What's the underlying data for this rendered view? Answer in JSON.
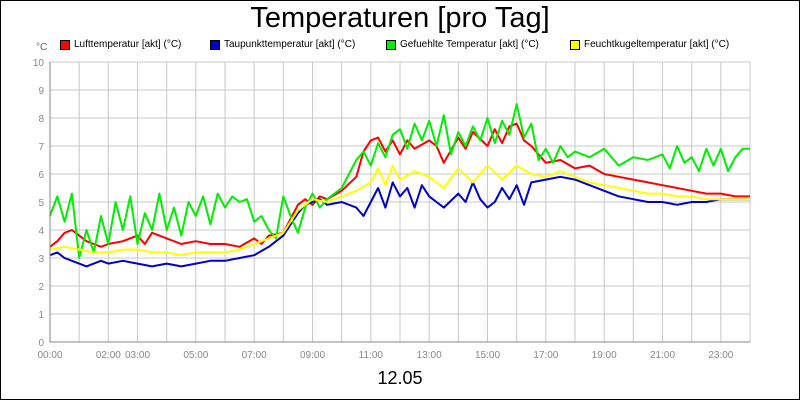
{
  "chart_data": {
    "type": "line",
    "title": "Temperaturen [pro Tag]",
    "ylabel": "°C",
    "xlabel": "12.05",
    "ylim": [
      0,
      10
    ],
    "xlim": [
      0,
      24
    ],
    "grid": true,
    "legend_position": "top",
    "y_ticks": [
      "0",
      "1",
      "2",
      "3",
      "4",
      "5",
      "6",
      "7",
      "8",
      "9",
      "10"
    ],
    "x_ticks": [
      {
        "x": 0,
        "label": "00:00"
      },
      {
        "x": 2,
        "label": "02:00"
      },
      {
        "x": 3,
        "label": "03:00"
      },
      {
        "x": 5,
        "label": "05:00"
      },
      {
        "x": 7,
        "label": "07:00"
      },
      {
        "x": 9,
        "label": "09:00"
      },
      {
        "x": 11,
        "label": "11:00"
      },
      {
        "x": 13,
        "label": "13:00"
      },
      {
        "x": 15,
        "label": "15:00"
      },
      {
        "x": 17,
        "label": "17:00"
      },
      {
        "x": 19,
        "label": "19:00"
      },
      {
        "x": 21,
        "label": "21:00"
      },
      {
        "x": 23,
        "label": "23:00"
      }
    ],
    "series": [
      {
        "name": "Lufttemperatur [akt] (°C)",
        "color": "#ff0000",
        "x": [
          0,
          0.25,
          0.5,
          0.75,
          1,
          1.25,
          1.5,
          1.75,
          2,
          2.5,
          3,
          3.25,
          3.5,
          4,
          4.5,
          5,
          5.5,
          6,
          6.5,
          7,
          7.25,
          7.5,
          8,
          8.5,
          8.75,
          9,
          9.25,
          9.5,
          10,
          10.5,
          10.75,
          11,
          11.25,
          11.5,
          11.75,
          12,
          12.25,
          12.5,
          13,
          13.25,
          13.5,
          14,
          14.25,
          14.5,
          15,
          15.25,
          15.5,
          15.75,
          16,
          16.25,
          16.5,
          17,
          17.5,
          18,
          18.5,
          19,
          19.5,
          20,
          20.5,
          21,
          21.5,
          22,
          22.5,
          23,
          23.5,
          24
        ],
        "y": [
          3.4,
          3.6,
          3.9,
          4.0,
          3.8,
          3.6,
          3.5,
          3.4,
          3.5,
          3.6,
          3.8,
          3.5,
          3.9,
          3.7,
          3.5,
          3.6,
          3.5,
          3.5,
          3.4,
          3.7,
          3.5,
          3.8,
          3.9,
          4.9,
          5.1,
          4.9,
          5.2,
          5.1,
          5.4,
          5.9,
          6.8,
          7.2,
          7.3,
          6.8,
          7.2,
          6.7,
          7.2,
          6.9,
          7.2,
          7.0,
          6.4,
          7.3,
          6.9,
          7.5,
          7.0,
          7.6,
          7.1,
          7.7,
          7.8,
          7.2,
          7.0,
          6.4,
          6.5,
          6.2,
          6.3,
          6.0,
          5.9,
          5.8,
          5.7,
          5.6,
          5.5,
          5.4,
          5.3,
          5.3,
          5.2,
          5.2
        ]
      },
      {
        "name": "Taupunkttemperatur [akt] (°C)",
        "color": "#0000cc",
        "x": [
          0,
          0.25,
          0.5,
          0.75,
          1,
          1.25,
          1.5,
          1.75,
          2,
          2.5,
          3,
          3.5,
          4,
          4.5,
          5,
          5.5,
          6,
          6.5,
          7,
          7.5,
          8,
          8.25,
          8.5,
          8.75,
          9,
          9.25,
          9.5,
          10,
          10.5,
          10.75,
          11,
          11.25,
          11.5,
          11.75,
          12,
          12.25,
          12.5,
          12.75,
          13,
          13.25,
          13.5,
          14,
          14.25,
          14.5,
          14.75,
          15,
          15.25,
          15.5,
          15.75,
          16,
          16.25,
          16.5,
          17,
          17.5,
          18,
          18.5,
          19,
          19.5,
          20,
          20.5,
          21,
          21.5,
          22,
          22.5,
          23,
          23.5,
          24
        ],
        "y": [
          3.1,
          3.2,
          3.0,
          2.9,
          2.8,
          2.7,
          2.8,
          2.9,
          2.8,
          2.9,
          2.8,
          2.7,
          2.8,
          2.7,
          2.8,
          2.9,
          2.9,
          3.0,
          3.1,
          3.4,
          3.8,
          4.2,
          4.6,
          4.9,
          5.0,
          5.1,
          4.9,
          5.0,
          4.8,
          4.5,
          5.0,
          5.5,
          4.8,
          5.7,
          5.2,
          5.5,
          4.8,
          5.6,
          5.2,
          5.0,
          4.8,
          5.3,
          5.0,
          5.7,
          5.1,
          4.8,
          5.0,
          5.5,
          5.1,
          5.6,
          4.9,
          5.7,
          5.8,
          5.9,
          5.8,
          5.6,
          5.4,
          5.2,
          5.1,
          5.0,
          5.0,
          4.9,
          5.0,
          5.0,
          5.1,
          5.1,
          5.1
        ]
      },
      {
        "name": "Gefuehlte Temperatur [akt] (°C)",
        "color": "#00ee00",
        "x": [
          0,
          0.25,
          0.5,
          0.75,
          1,
          1.25,
          1.5,
          1.75,
          2,
          2.25,
          2.5,
          2.75,
          3,
          3.25,
          3.5,
          3.75,
          4,
          4.25,
          4.5,
          4.75,
          5,
          5.25,
          5.5,
          5.75,
          6,
          6.25,
          6.5,
          6.75,
          7,
          7.25,
          7.5,
          7.75,
          8,
          8.25,
          8.5,
          8.75,
          9,
          9.25,
          9.5,
          10,
          10.5,
          10.75,
          11,
          11.25,
          11.5,
          11.75,
          12,
          12.25,
          12.5,
          12.75,
          13,
          13.25,
          13.5,
          13.75,
          14,
          14.25,
          14.5,
          14.75,
          15,
          15.25,
          15.5,
          15.75,
          16,
          16.25,
          16.5,
          16.75,
          17,
          17.25,
          17.5,
          17.75,
          18,
          18.5,
          19,
          19.5,
          20,
          20.5,
          21,
          21.25,
          21.5,
          21.75,
          22,
          22.25,
          22.5,
          22.75,
          23,
          23.25,
          23.5,
          23.75,
          24
        ],
        "y": [
          4.5,
          5.2,
          4.3,
          5.3,
          3.0,
          4.0,
          3.2,
          4.5,
          3.5,
          5.0,
          4.0,
          5.2,
          3.5,
          4.6,
          4.0,
          5.3,
          4.0,
          4.8,
          3.8,
          5.0,
          4.5,
          5.2,
          4.2,
          5.3,
          4.8,
          5.2,
          5.0,
          5.1,
          4.3,
          4.5,
          4.0,
          3.7,
          5.2,
          4.5,
          3.9,
          4.8,
          5.3,
          4.8,
          5.1,
          5.5,
          6.5,
          6.8,
          6.3,
          7.1,
          6.6,
          7.4,
          7.6,
          6.9,
          7.8,
          7.2,
          7.9,
          7.0,
          8.1,
          6.7,
          7.5,
          7.0,
          7.7,
          7.2,
          8.0,
          7.1,
          7.9,
          7.4,
          8.5,
          7.3,
          7.8,
          6.5,
          6.9,
          6.4,
          7.0,
          6.6,
          6.8,
          6.6,
          6.9,
          6.3,
          6.6,
          6.5,
          6.7,
          6.2,
          7.0,
          6.4,
          6.6,
          6.1,
          6.9,
          6.3,
          6.9,
          6.1,
          6.6,
          6.9,
          6.9
        ]
      },
      {
        "name": "Feuchtkugeltemperatur [akt] (°C)",
        "color": "#ffff00",
        "x": [
          0,
          0.5,
          1,
          1.5,
          2,
          2.5,
          3,
          3.5,
          4,
          4.5,
          5,
          5.5,
          6,
          6.5,
          7,
          7.5,
          8,
          8.5,
          9,
          9.5,
          10,
          10.5,
          11,
          11.25,
          11.5,
          11.75,
          12,
          12.5,
          13,
          13.5,
          14,
          14.5,
          15,
          15.5,
          16,
          16.5,
          17,
          17.5,
          18,
          18.5,
          19,
          19.5,
          20,
          20.5,
          21,
          21.5,
          22,
          22.5,
          23,
          23.5,
          24
        ],
        "y": [
          3.3,
          3.4,
          3.3,
          3.2,
          3.2,
          3.3,
          3.3,
          3.2,
          3.2,
          3.1,
          3.2,
          3.2,
          3.2,
          3.3,
          3.5,
          3.7,
          3.9,
          4.7,
          5.1,
          5.0,
          5.2,
          5.4,
          5.7,
          6.2,
          5.6,
          6.3,
          5.8,
          6.1,
          5.9,
          5.5,
          6.2,
          5.7,
          6.3,
          5.8,
          6.3,
          6.0,
          5.9,
          6.1,
          5.9,
          5.7,
          5.6,
          5.5,
          5.4,
          5.3,
          5.3,
          5.2,
          5.2,
          5.1,
          5.1,
          5.1,
          5.1
        ]
      }
    ]
  }
}
